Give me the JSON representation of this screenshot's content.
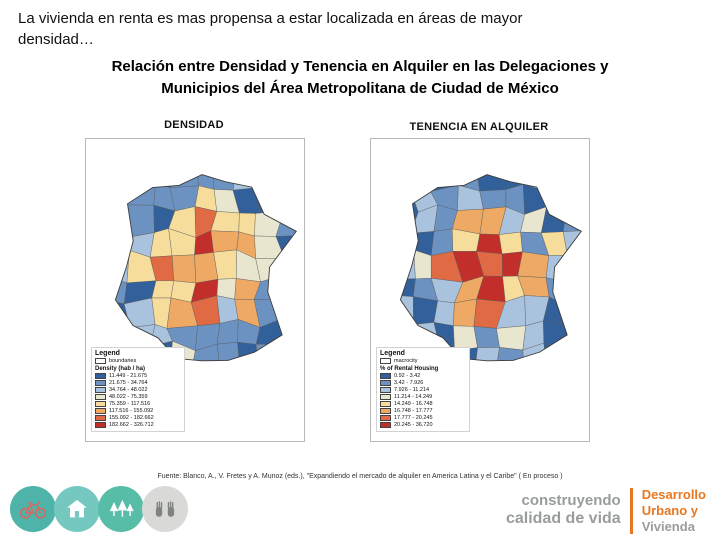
{
  "header": {
    "intro": "La vivienda en renta es mas propensa a estar localizada en áreas de mayor densidad…",
    "title": "Relación entre Densidad y Tenencia en Alquiler en las Delegaciones y\nMunicipios del Área Metropolitana de Ciudad de México"
  },
  "maps": {
    "densidad": {
      "label": "DENSIDAD",
      "legend": {
        "title": "Legend",
        "boundary_label": "boundaries",
        "subtitle": "Density (hab / ha)",
        "classes": [
          {
            "color": "#31609b",
            "label": "11.449 - 21.675"
          },
          {
            "color": "#6c92c2",
            "label": "21.675 - 34.764"
          },
          {
            "color": "#a9c2dd",
            "label": "34.764 - 48.022"
          },
          {
            "color": "#e9e6cf",
            "label": "48.022 - 75.359"
          },
          {
            "color": "#f6dd9b",
            "label": "75.359 - 117.516"
          },
          {
            "color": "#eeaa64",
            "label": "117.516 - 155.092"
          },
          {
            "color": "#e06a43",
            "label": "155.092 - 182.662"
          },
          {
            "color": "#c22f2a",
            "label": "182.662 - 326.712"
          }
        ]
      }
    },
    "tenencia": {
      "label": "TENENCIA EN ALQUILER",
      "legend": {
        "title": "Legend",
        "boundary_label": "macrocity",
        "subtitle": "% of Rental Housing",
        "classes": [
          {
            "color": "#31609b",
            "label": "0.92 - 3.42"
          },
          {
            "color": "#6c92c2",
            "label": "3.42 - 7.926"
          },
          {
            "color": "#a9c2dd",
            "label": "7.926 - 11.214"
          },
          {
            "color": "#e9e6cf",
            "label": "11.214 - 14.249"
          },
          {
            "color": "#f6dd9b",
            "label": "14.249 - 16.748"
          },
          {
            "color": "#eeaa64",
            "label": "16.748 - 17.777"
          },
          {
            "color": "#e06a43",
            "label": "17.777 - 20.245"
          },
          {
            "color": "#c22f2a",
            "label": "20.245 - 36.720"
          }
        ]
      }
    }
  },
  "footer": {
    "source": "Fuente: Blanco, A., V. Fretes y A. Munoz (eds.), \"Expandiendo el mercado de alquiler en America Latina y el Caribe\" ( En proceso )",
    "icons": [
      "bicycle",
      "housing",
      "parks",
      "hands"
    ],
    "logo": {
      "left_top": "construyendo",
      "left_bottom": "calidad de vida",
      "right_line1": "Desarrollo",
      "right_line2": "Urbano y",
      "right_line3": "Vivienda"
    }
  },
  "colors": {
    "accent_orange": "#e87722",
    "logo_gray": "#999d9a",
    "icon_teal_1": "#4eb3a9",
    "icon_teal_2": "#74c8bf",
    "icon_teal_3": "#58bda6",
    "icon_gray": "#d9dad7",
    "bike_glyph": "#e0645c",
    "hands_glyph": "#80847f",
    "boundary_stroke": "#3c3c3c"
  }
}
